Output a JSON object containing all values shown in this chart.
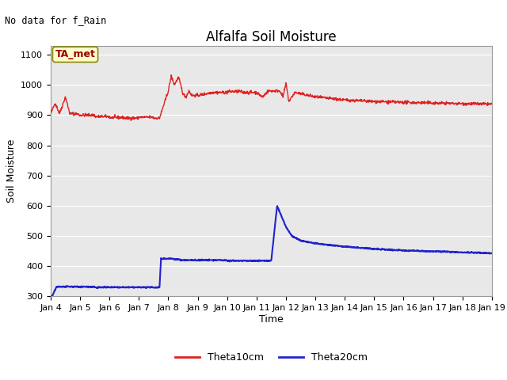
{
  "title": "Alfalfa Soil Moisture",
  "ylabel": "Soil Moisture",
  "xlabel": "Time",
  "no_data_text": "No data for f_Rain",
  "legend_label_text": "TA_met",
  "ylim": [
    300,
    1130
  ],
  "yticks": [
    300,
    400,
    500,
    600,
    700,
    800,
    900,
    1000,
    1100
  ],
  "bg_color": "#e8e8e8",
  "line1_color": "#dd2222",
  "line2_color": "#2222cc",
  "legend_box_facecolor": "#ffffcc",
  "legend_box_edgecolor": "#888800",
  "legend_text_color": "#990000",
  "grid_color": "#ffffff",
  "title_fontsize": 12,
  "label_fontsize": 9,
  "tick_fontsize": 8
}
